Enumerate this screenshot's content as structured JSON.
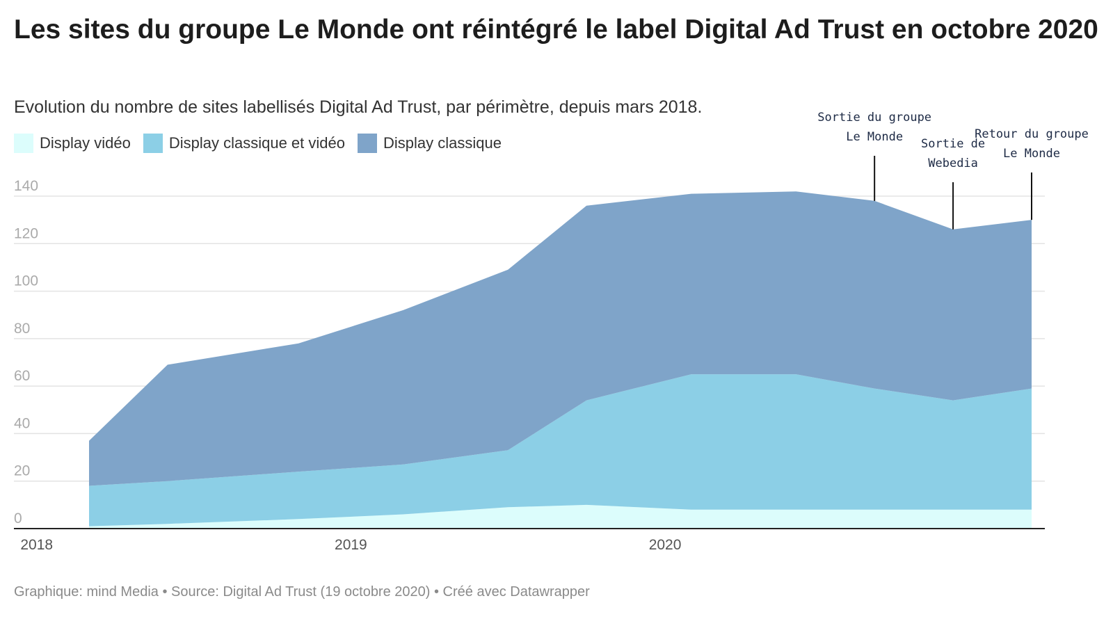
{
  "title": "Les sites du groupe Le Monde ont réintégré le label Digital Ad Trust en octobre 2020",
  "subtitle": "Evolution du nombre de sites labellisés Digital Ad Trust, par périmètre, depuis mars 2018.",
  "footer": "Graphique: mind Media • Source: Digital Ad Trust (19 octobre 2020) • Créé avec Datawrapper",
  "legend": [
    {
      "label": "Display vidéo",
      "color": "#dcfdfc"
    },
    {
      "label": "Display classique et vidéo",
      "color": "#8ccfe6"
    },
    {
      "label": "Display classique",
      "color": "#7fa4c9"
    }
  ],
  "chart_data": {
    "type": "area",
    "stacked": true,
    "x": [
      "2018-03",
      "2018-06",
      "2018-11",
      "2019-03",
      "2019-07",
      "2019-10",
      "2020-02",
      "2020-06",
      "2020-09",
      "2020-12",
      "2021-03"
    ],
    "x_ticks": [
      "2018",
      "2019",
      "2020"
    ],
    "ylim": [
      0,
      140
    ],
    "y_ticks": [
      0,
      20,
      40,
      60,
      80,
      100,
      120,
      140
    ],
    "grid": true,
    "legend_position": "top-left",
    "series": [
      {
        "name": "Display vidéo",
        "color": "#dcfdfc",
        "values": [
          1,
          2,
          4,
          6,
          9,
          10,
          8,
          8,
          8,
          8,
          8
        ]
      },
      {
        "name": "Display classique et vidéo",
        "color": "#8ccfe6",
        "values": [
          17,
          18,
          20,
          21,
          24,
          44,
          57,
          57,
          51,
          46,
          51
        ]
      },
      {
        "name": "Display classique",
        "color": "#7fa4c9",
        "values": [
          19,
          49,
          54,
          65,
          76,
          82,
          76,
          77,
          79,
          72,
          71
        ]
      }
    ],
    "annotations": [
      {
        "lines": [
          "Sortie du groupe",
          "Le Monde"
        ],
        "x": "2020-09",
        "y": 138
      },
      {
        "lines": [
          "Sortie de",
          "Webedia"
        ],
        "x": "2020-12",
        "y": 126
      },
      {
        "lines": [
          "Retour du groupe",
          "Le Monde"
        ],
        "x": "2021-03",
        "y": 130
      }
    ]
  }
}
